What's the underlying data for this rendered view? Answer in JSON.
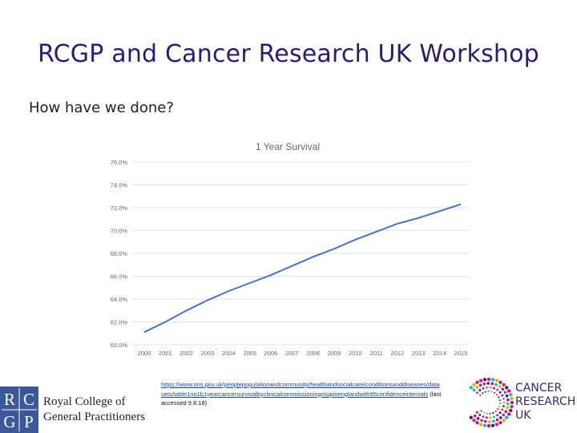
{
  "slide": {
    "title": "RCGP and Cancer Research UK Workshop",
    "subtitle": "How have we done?"
  },
  "chart_data": {
    "type": "line",
    "title": "1 Year Survival",
    "categories": [
      "2000",
      "2001",
      "2002",
      "2003",
      "2004",
      "2005",
      "2006",
      "2007",
      "2008",
      "2009",
      "2010",
      "2011",
      "2012",
      "2013",
      "2014",
      "2015"
    ],
    "series": [
      {
        "name": "1 Year Survival",
        "values": [
          61.1,
          62.0,
          63.0,
          63.9,
          64.7,
          65.4,
          66.1,
          66.9,
          67.7,
          68.4,
          69.2,
          69.9,
          70.6,
          71.1,
          71.7,
          72.3
        ]
      }
    ],
    "yticks": [
      "60.0%",
      "62.0%",
      "64.0%",
      "66.0%",
      "68.0%",
      "70.0%",
      "72.0%",
      "74.0%",
      "76.0%"
    ],
    "ylim": [
      60,
      76
    ],
    "grid": true,
    "line_color": "#4a72c4"
  },
  "footer": {
    "rcgp_letters": "RCGP",
    "rcgp_line1": "Royal College of",
    "rcgp_line2": "General Practitioners",
    "cruk_line1": "CANCER",
    "cruk_line2": "RESEARCH",
    "cruk_line3": "UK",
    "reference_link": "https://www.ons.gov.uk/peoplepopulationandcommunity/healthandsocialcare/conditionsanddiseases/datasets/table1no1b1yearcancersurvivalbyclinicalcommissioningroupinenglandwith95confidenceintervals",
    "reference_accessed": "(last accessed 9.8.18)"
  },
  "colors": {
    "title": "#2e1a6e",
    "rcgp_blue": "#3b5998",
    "cruk_navy": "#2e2a6e",
    "cruk_pink": "#e0227a"
  }
}
